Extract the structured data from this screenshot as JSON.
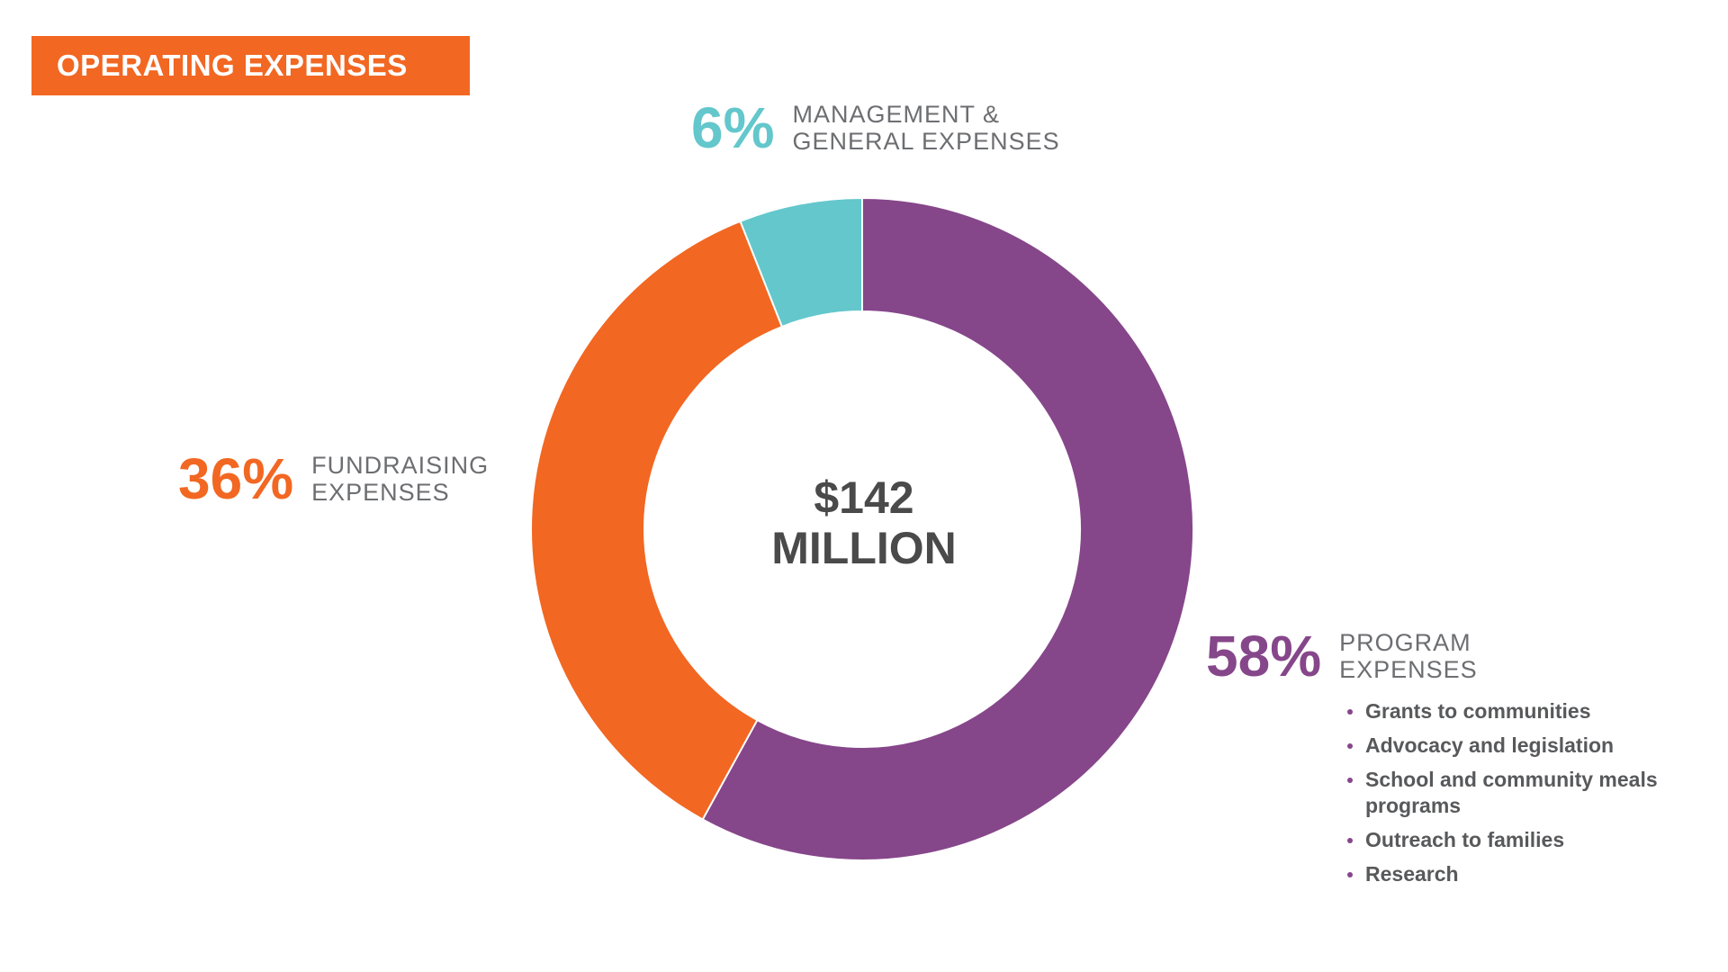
{
  "header": {
    "title": "OPERATING EXPENSES"
  },
  "colors": {
    "title_bg": "#f26722",
    "program": "#86468a",
    "fundraising": "#f26722",
    "management": "#63c7cc",
    "center_text": "#4a4a4a",
    "label_text": "#6d6e71"
  },
  "center": {
    "line1": "$142",
    "line2": "MILLION"
  },
  "labels": {
    "management": {
      "pct": "6%",
      "line1": "MANAGEMENT &",
      "line2": "GENERAL EXPENSES"
    },
    "fundraising": {
      "pct": "36%",
      "line1": "FUNDRAISING",
      "line2": "EXPENSES"
    },
    "program": {
      "pct": "58%",
      "line1": "PROGRAM",
      "line2": "EXPENSES",
      "items": [
        "Grants to communities",
        "Advocacy and legislation",
        "School and community meals programs",
        "Outreach to families",
        "Research"
      ]
    }
  },
  "chart_data": {
    "type": "pie",
    "donut": true,
    "title": "OPERATING EXPENSES",
    "center_label": "$142 MILLION",
    "total": "$142 MILLION",
    "slices": [
      {
        "label": "PROGRAM EXPENSES",
        "value": 58,
        "color": "#86468a"
      },
      {
        "label": "FUNDRAISING EXPENSES",
        "value": 36,
        "color": "#f26722"
      },
      {
        "label": "MANAGEMENT & GENERAL EXPENSES",
        "value": 6,
        "color": "#63c7cc"
      }
    ],
    "start": "12 o'clock",
    "direction": "clockwise"
  }
}
